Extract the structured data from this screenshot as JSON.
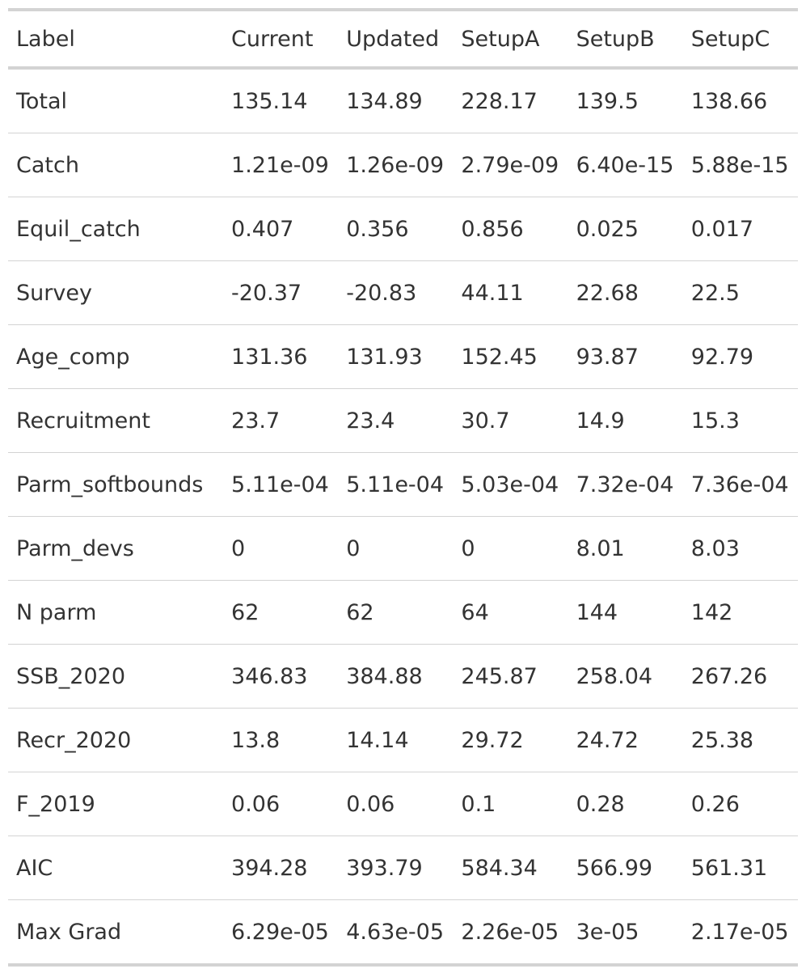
{
  "table": {
    "columns": [
      "Label",
      "Current",
      "Updated",
      "SetupA",
      "SetupB",
      "SetupC"
    ],
    "rows": [
      [
        "Total",
        "135.14",
        "134.89",
        "228.17",
        "139.5",
        "138.66"
      ],
      [
        "Catch",
        "1.21e-09",
        "1.26e-09",
        "2.79e-09",
        "6.40e-15",
        "5.88e-15"
      ],
      [
        "Equil_catch",
        "0.407",
        "0.356",
        "0.856",
        "0.025",
        "0.017"
      ],
      [
        "Survey",
        "-20.37",
        "-20.83",
        "44.11",
        "22.68",
        "22.5"
      ],
      [
        "Age_comp",
        "131.36",
        "131.93",
        "152.45",
        "93.87",
        "92.79"
      ],
      [
        "Recruitment",
        "23.7",
        "23.4",
        "30.7",
        "14.9",
        "15.3"
      ],
      [
        "Parm_softbounds",
        "5.11e-04",
        "5.11e-04",
        "5.03e-04",
        "7.32e-04",
        "7.36e-04"
      ],
      [
        "Parm_devs",
        "0",
        "0",
        "0",
        "8.01",
        "8.03"
      ],
      [
        "N parm",
        "62",
        "62",
        "64",
        "144",
        "142"
      ],
      [
        "SSB_2020",
        "346.83",
        "384.88",
        "245.87",
        "258.04",
        "267.26"
      ],
      [
        "Recr_2020",
        "13.8",
        "14.14",
        "29.72",
        "24.72",
        "25.38"
      ],
      [
        "F_2019",
        "0.06",
        "0.06",
        "0.1",
        "0.28",
        "0.26"
      ],
      [
        "AIC",
        "394.28",
        "393.79",
        "584.34",
        "566.99",
        "561.31"
      ],
      [
        "Max Grad",
        "6.29e-05",
        "4.63e-05",
        "2.26e-05",
        "3e-05",
        "2.17e-05"
      ]
    ]
  }
}
